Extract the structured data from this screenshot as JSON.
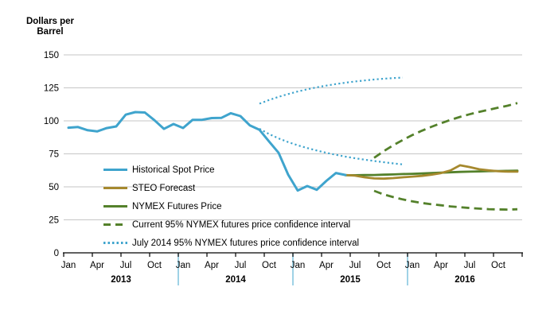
{
  "y_axis_title": {
    "line1": "Dollars per",
    "line2": "Barrel"
  },
  "colors": {
    "blue": "#3fa4cd",
    "olive": "#a6892e",
    "green": "#54812b",
    "gridline": "#c6c6c6",
    "axis": "#000000",
    "year_separator": "#7fc3de",
    "text": "#000000"
  },
  "legend": {
    "items": [
      {
        "label": "Historical Spot Price",
        "swatch": "solid-blue"
      },
      {
        "label": "STEO Forecast",
        "swatch": "solid-olive"
      },
      {
        "label": "NYMEX Futures Price",
        "swatch": "solid-green"
      },
      {
        "label": "Current 95% NYMEX futures price confidence interval",
        "swatch": "dashed-green"
      },
      {
        "label": "July 2014 95% NYMEX futures price confidence interval",
        "swatch": "dotted-blue"
      }
    ]
  },
  "chart_data": {
    "type": "line",
    "title": "",
    "ylabel": "Dollars per Barrel",
    "xlabel": "",
    "ylim": [
      0,
      150
    ],
    "yticks": [
      0,
      25,
      50,
      75,
      100,
      125,
      150
    ],
    "grid": "horizontal",
    "legend_position": "inside-left",
    "x_range": "Jan 2013 - Dec 2016 (monthly)",
    "years": [
      "2013",
      "2014",
      "2015",
      "2016"
    ],
    "quarter_tick_labels": [
      "Jan",
      "Apr",
      "Jul",
      "Oct"
    ],
    "series": [
      {
        "name": "Historical Spot Price",
        "style": "solid",
        "color_key": "blue",
        "width": 3,
        "start_month": 0,
        "period": "Jan 2013 - Jun 2015",
        "values": [
          94.8,
          95.3,
          92.9,
          92.0,
          94.5,
          95.8,
          104.7,
          106.6,
          106.3,
          100.5,
          93.9,
          97.6,
          94.6,
          100.8,
          100.8,
          102.1,
          102.2,
          105.8,
          103.6,
          96.5,
          93.2,
          84.4,
          75.8,
          59.3,
          47.2,
          50.6,
          47.8,
          54.5,
          60.5,
          59.0
        ]
      },
      {
        "name": "STEO Forecast",
        "style": "solid",
        "color_key": "olive",
        "width": 2.8,
        "start_month": 29,
        "period": "Jun 2015 - Dec 2016",
        "values": [
          59.0,
          58.5,
          57.2,
          56.4,
          56.2,
          56.6,
          57.2,
          57.8,
          58.3,
          59.2,
          60.4,
          62.5,
          66.3,
          65.0,
          63.3,
          62.5,
          61.8,
          61.5,
          61.5
        ]
      },
      {
        "name": "NYMEX Futures Price",
        "style": "solid",
        "color_key": "green",
        "width": 2.8,
        "start_month": 29,
        "period": "Jun 2015 - Dec 2016",
        "values": [
          58.8,
          58.8,
          58.9,
          59.0,
          59.2,
          59.4,
          59.7,
          59.9,
          60.1,
          60.4,
          60.7,
          61.0,
          61.3,
          61.5,
          61.7,
          61.9,
          62.0,
          62.1,
          62.2
        ]
      },
      {
        "name": "Current 95% NYMEX futures price confidence interval (upper bound)",
        "style": "dashed",
        "color_key": "green",
        "width": 2.8,
        "start_month": 32,
        "period": "Sep 2015 - Dec 2016",
        "values": [
          72,
          77,
          81.5,
          85.5,
          89.2,
          92.5,
          95.5,
          98.2,
          100.7,
          103,
          105,
          106.8,
          108.4,
          110,
          111.5,
          113.5
        ]
      },
      {
        "name": "Current 95% NYMEX futures price confidence interval (lower bound)",
        "style": "dashed",
        "color_key": "green",
        "width": 2.8,
        "start_month": 32,
        "period": "Sep 2015 - Dec 2016",
        "values": [
          47,
          44.3,
          42.2,
          40.5,
          39,
          37.8,
          36.8,
          36,
          35.2,
          34.6,
          34,
          33.5,
          33.1,
          32.9,
          32.8,
          33
        ]
      },
      {
        "name": "July 2014 95% NYMEX futures price confidence interval (upper bound)",
        "style": "dotted",
        "color_key": "blue",
        "width": 2.2,
        "start_month": 20,
        "period": "Sep 2014 - Dec 2015",
        "values": [
          113,
          115.8,
          118.2,
          120.3,
          122.2,
          123.9,
          125.4,
          126.7,
          127.9,
          128.9,
          129.8,
          130.6,
          131.3,
          131.9,
          132.4,
          132.8
        ]
      },
      {
        "name": "July 2014 95% NYMEX futures price confidence interval (lower bound)",
        "style": "dotted",
        "color_key": "blue",
        "width": 2.2,
        "start_month": 20,
        "period": "Sep 2014 - Dec 2015",
        "values": [
          94,
          90,
          86.7,
          83.9,
          81.5,
          79.4,
          77.5,
          75.8,
          74.3,
          72.9,
          71.7,
          70.6,
          69.6,
          68.7,
          67.8,
          67
        ]
      }
    ]
  }
}
